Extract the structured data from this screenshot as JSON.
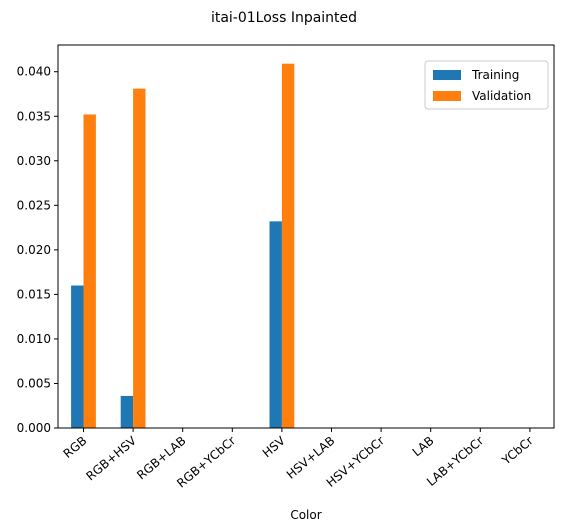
{
  "chart_data": {
    "type": "bar",
    "title": "itai-01Loss Inpainted",
    "xlabel": "Color",
    "ylabel": "",
    "ylim": [
      0,
      0.043
    ],
    "yticks": [
      "0.000",
      "0.005",
      "0.010",
      "0.015",
      "0.020",
      "0.025",
      "0.030",
      "0.035",
      "0.040"
    ],
    "categories": [
      "RGB",
      "RGB+HSV",
      "RGB+LAB",
      "RGB+YCbCr",
      "HSV",
      "HSV+LAB",
      "HSV+YCbCr",
      "LAB",
      "LAB+YCbCr",
      "YCbCr"
    ],
    "legend_position": "top-right",
    "series": [
      {
        "name": "Training",
        "color": "#1f77b4",
        "values": [
          0.016,
          0.0036,
          0,
          0,
          0.0232,
          0,
          0,
          0,
          0,
          0
        ]
      },
      {
        "name": "Validation",
        "color": "#ff7f0e",
        "values": [
          0.0352,
          0.0381,
          0,
          0,
          0.0409,
          0,
          0,
          0,
          0,
          0
        ]
      }
    ]
  }
}
